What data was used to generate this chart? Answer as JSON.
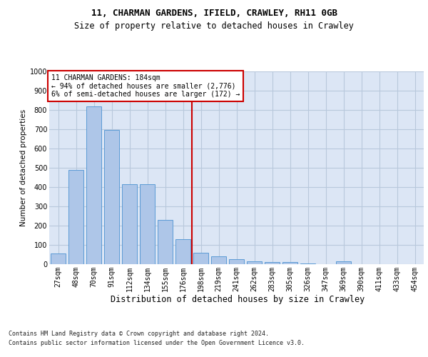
{
  "title1": "11, CHARMAN GARDENS, IFIELD, CRAWLEY, RH11 0GB",
  "title2": "Size of property relative to detached houses in Crawley",
  "xlabel": "Distribution of detached houses by size in Crawley",
  "ylabel": "Number of detached properties",
  "footer1": "Contains HM Land Registry data © Crown copyright and database right 2024.",
  "footer2": "Contains public sector information licensed under the Open Government Licence v3.0.",
  "annotation_line1": "11 CHARMAN GARDENS: 184sqm",
  "annotation_line2": "← 94% of detached houses are smaller (2,776)",
  "annotation_line3": "6% of semi-detached houses are larger (172) →",
  "bar_color": "#aec6e8",
  "bar_edgecolor": "#5b9bd5",
  "vline_color": "#cc0000",
  "annotation_box_edgecolor": "#cc0000",
  "background_color": "#ffffff",
  "plot_bg_color": "#dce6f5",
  "grid_color": "#b8c8dc",
  "categories": [
    "27sqm",
    "48sqm",
    "70sqm",
    "91sqm",
    "112sqm",
    "134sqm",
    "155sqm",
    "176sqm",
    "198sqm",
    "219sqm",
    "241sqm",
    "262sqm",
    "283sqm",
    "305sqm",
    "326sqm",
    "347sqm",
    "369sqm",
    "390sqm",
    "411sqm",
    "433sqm",
    "454sqm"
  ],
  "values": [
    55,
    490,
    820,
    695,
    415,
    415,
    230,
    130,
    60,
    40,
    25,
    15,
    12,
    10,
    5,
    0,
    15,
    0,
    0,
    0,
    0
  ],
  "ylim": [
    0,
    1000
  ],
  "yticks": [
    0,
    100,
    200,
    300,
    400,
    500,
    600,
    700,
    800,
    900,
    1000
  ],
  "vline_x_index": 7.5,
  "title1_fontsize": 9,
  "title2_fontsize": 8.5,
  "ylabel_fontsize": 7.5,
  "xlabel_fontsize": 8.5,
  "tick_fontsize": 7,
  "annotation_fontsize": 7,
  "footer_fontsize": 6
}
